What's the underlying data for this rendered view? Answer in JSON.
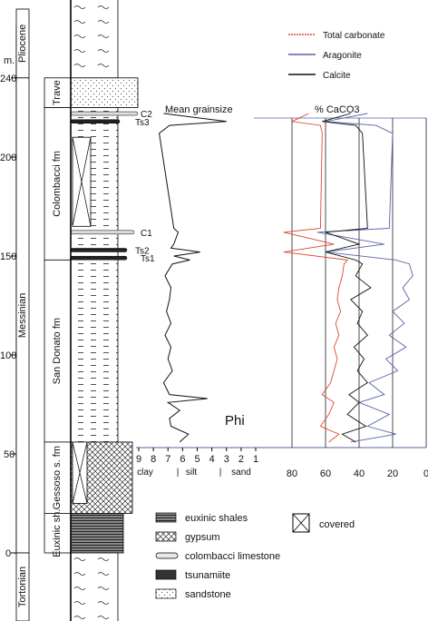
{
  "chart_data": {
    "type": "line",
    "title": "",
    "depth_unit": "m.",
    "depth_ticks": [
      0,
      50,
      100,
      150,
      200,
      240
    ],
    "stratigraphy": {
      "stages": [
        {
          "name": "Pliocene",
          "top": 280,
          "bottom": 240
        },
        {
          "name": "Messinian",
          "top": 240,
          "bottom": 0
        },
        {
          "name": "Tortonian",
          "top": 0,
          "bottom": -40
        }
      ],
      "formations": [
        {
          "name": "Trave",
          "top": 240,
          "bottom": 225
        },
        {
          "name": "Colombacci fm",
          "top": 225,
          "bottom": 148
        },
        {
          "name": "San Donato fm",
          "top": 148,
          "bottom": 56
        },
        {
          "name": "Gessoso s. fm",
          "top": 56,
          "bottom": 20
        },
        {
          "name": "Euxinic sh.",
          "top": 20,
          "bottom": 0
        }
      ],
      "markers": [
        {
          "label": "C2",
          "depth": 222
        },
        {
          "label": "Ts3",
          "depth": 218
        },
        {
          "label": "C1",
          "depth": 162
        },
        {
          "label": "Ts2",
          "depth": 153
        },
        {
          "label": "Ts1",
          "depth": 149
        }
      ]
    },
    "grainsize": {
      "title": "Mean grainsize",
      "xlabel": "Phi",
      "ticks": [
        9,
        8,
        7,
        6,
        5,
        4,
        3,
        2,
        1
      ],
      "classes": [
        "clay",
        "|",
        "silt",
        "|",
        "sand"
      ],
      "depth": [
        56,
        60,
        64,
        68,
        72,
        76,
        78,
        80,
        86,
        92,
        98,
        104,
        110,
        116,
        122,
        128,
        134,
        140,
        146,
        148,
        150,
        152,
        154,
        156,
        162,
        164,
        212,
        216,
        218,
        222
      ],
      "phi": [
        6.2,
        5.6,
        6.8,
        6.9,
        6.2,
        7.0,
        4.3,
        6.9,
        7.3,
        6.7,
        7.0,
        6.8,
        7.2,
        6.8,
        7.1,
        6.9,
        6.8,
        7.2,
        6.7,
        5.5,
        6.6,
        4.8,
        6.8,
        6.6,
        6.3,
        6.6,
        7.6,
        6.9,
        3.0,
        7.3
      ]
    },
    "caco3": {
      "title": "% CaCO3",
      "ticks": [
        80,
        60,
        40,
        20,
        0
      ],
      "xlim": [
        80,
        0
      ],
      "depth": [
        56,
        60,
        64,
        70,
        76,
        80,
        86,
        92,
        98,
        104,
        110,
        116,
        122,
        128,
        134,
        140,
        146,
        148,
        152,
        156,
        162,
        164,
        212,
        216,
        218,
        222
      ],
      "series": [
        {
          "name": "Total carbonate",
          "color": "#e0472f",
          "values": [
            58,
            52,
            63,
            58,
            55,
            62,
            57,
            55,
            53,
            55,
            52,
            54,
            51,
            53,
            52,
            50,
            49,
            47,
            85,
            55,
            85,
            63,
            62,
            63,
            80,
            70
          ]
        },
        {
          "name": "Aragonite",
          "color": "#5a62a8",
          "values": [
            45,
            18,
            35,
            22,
            40,
            25,
            34,
            17,
            24,
            12,
            22,
            13,
            20,
            10,
            14,
            8,
            10,
            18,
            60,
            25,
            65,
            22,
            20,
            30,
            60,
            35
          ]
        },
        {
          "name": "Calcite",
          "color": "#111111",
          "values": [
            42,
            50,
            36,
            47,
            40,
            46,
            35,
            41,
            37,
            43,
            35,
            41,
            38,
            45,
            33,
            42,
            38,
            42,
            60,
            40,
            60,
            35,
            38,
            42,
            62,
            45
          ]
        }
      ]
    },
    "legend": [
      {
        "label": "euxinic shales",
        "pattern": "euxinic"
      },
      {
        "label": "gypsum",
        "pattern": "gypsum"
      },
      {
        "label": "colombacci limestone",
        "pattern": "limestone"
      },
      {
        "label": "tsunamiite",
        "pattern": "tsunamiite"
      },
      {
        "label": "sandstone",
        "pattern": "sandstone"
      },
      {
        "label": "covered",
        "pattern": "covered"
      }
    ]
  }
}
